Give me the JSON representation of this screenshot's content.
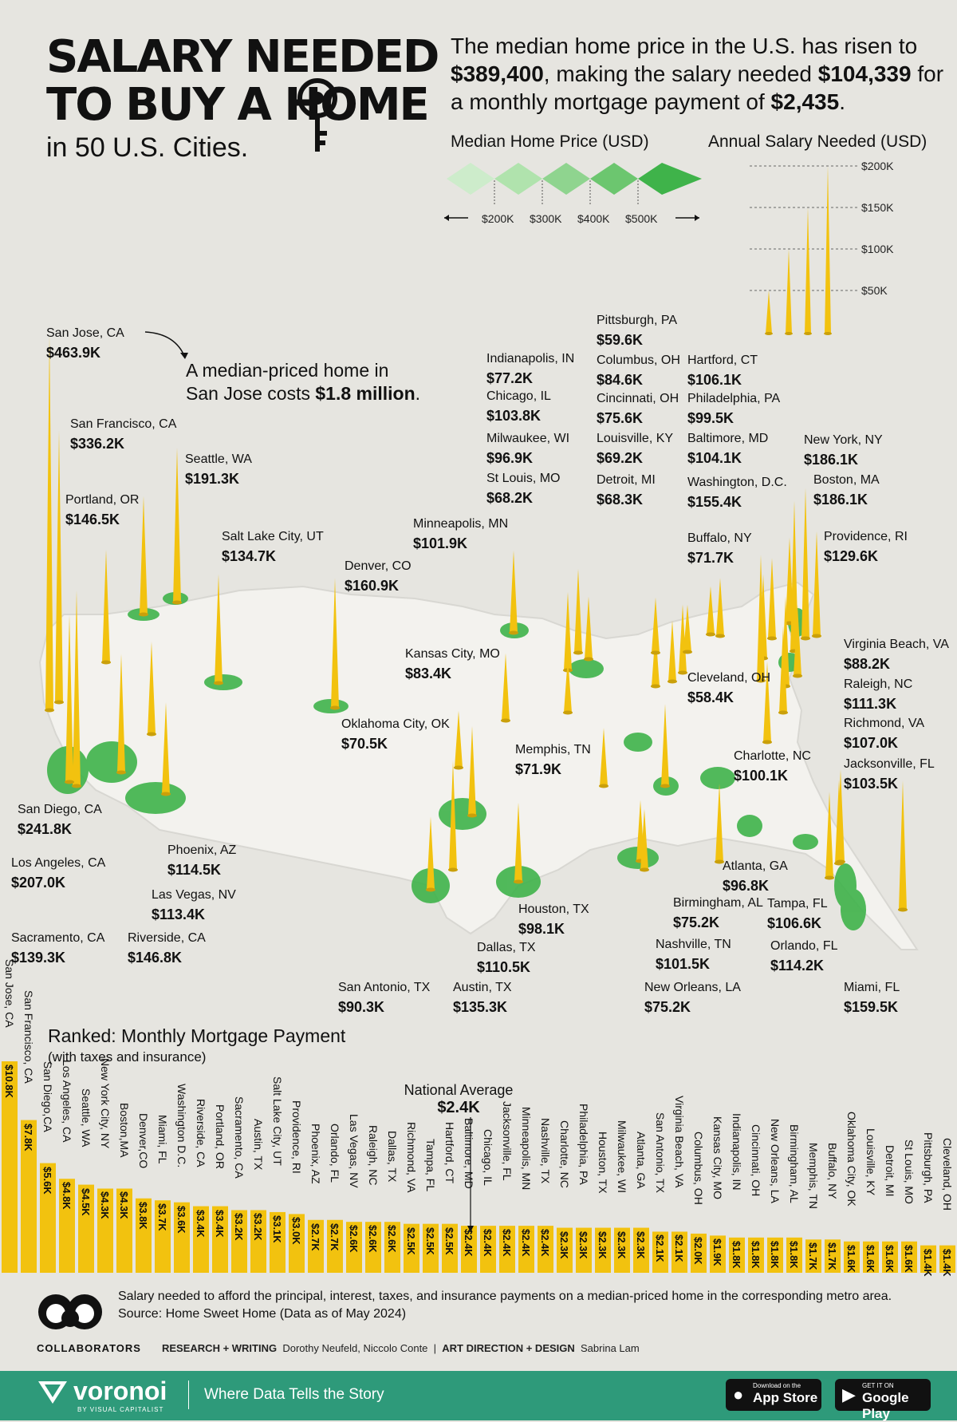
{
  "title_lines": [
    "SALARY NEEDED",
    "TO BUY A HOME"
  ],
  "subtitle": "in 50 U.S. Cities.",
  "intro": {
    "part1": "The median home price in the U.S. has risen to",
    "price": "$389,400",
    "part2": ", making the salary needed ",
    "salary": "$104,339",
    "part3": "for a monthly mortgage payment of ",
    "payment": "$2,435",
    "part4": "."
  },
  "legend": {
    "price_title": "Median Home Price (USD)",
    "price_ticks": [
      "$200K",
      "$300K",
      "$400K",
      "$500K"
    ],
    "salary_title": "Annual Salary Needed (USD)",
    "salary_ticks": [
      "$200K",
      "$150K",
      "$100K",
      "$50K"
    ]
  },
  "annotation": {
    "line1": "A median-priced home in",
    "line2a": "San Jose costs ",
    "line2b": "$1.8 million",
    "line2c": "."
  },
  "colors": {
    "spike": "#f2c20f",
    "spike_dark": "#caa00a",
    "metro": "#3fb34a",
    "metro_light": "#8fd48f",
    "map": "#f3f2ee",
    "bar": "#f2c20f",
    "background": "#e6e5e0",
    "brand": "#2e9a7a"
  },
  "chart_data": [
    {
      "type": "map-spikes",
      "title": "Annual Salary Needed (USD)",
      "series": [
        {
          "city": "San Jose, CA",
          "salary": "$463.9K",
          "value": 463.9
        },
        {
          "city": "San Francisco, CA",
          "salary": "$336.2K",
          "value": 336.2
        },
        {
          "city": "Seattle, WA",
          "salary": "$191.3K",
          "value": 191.3
        },
        {
          "city": "Portland, OR",
          "salary": "$146.5K",
          "value": 146.5
        },
        {
          "city": "Salt Lake City, UT",
          "salary": "$134.7K",
          "value": 134.7
        },
        {
          "city": "Denver, CO",
          "salary": "$160.9K",
          "value": 160.9
        },
        {
          "city": "Minneapolis, MN",
          "salary": "$101.9K",
          "value": 101.9
        },
        {
          "city": "Kansas City, MO",
          "salary": "$83.4K",
          "value": 83.4
        },
        {
          "city": "Oklahoma City, OK",
          "salary": "$70.5K",
          "value": 70.5
        },
        {
          "city": "Memphis, TN",
          "salary": "$71.9K",
          "value": 71.9
        },
        {
          "city": "Indianapolis, IN",
          "salary": "$77.2K",
          "value": 77.2
        },
        {
          "city": "Chicago, IL",
          "salary": "$103.8K",
          "value": 103.8
        },
        {
          "city": "Milwaukee, WI",
          "salary": "$96.9K",
          "value": 96.9
        },
        {
          "city": "St Louis, MO",
          "salary": "$68.2K",
          "value": 68.2
        },
        {
          "city": "Pittsburgh, PA",
          "salary": "$59.6K",
          "value": 59.6
        },
        {
          "city": "Columbus, OH",
          "salary": "$84.6K",
          "value": 84.6
        },
        {
          "city": "Cincinnati, OH",
          "salary": "$75.6K",
          "value": 75.6
        },
        {
          "city": "Louisville, KY",
          "salary": "$69.2K",
          "value": 69.2
        },
        {
          "city": "Detroit, MI",
          "salary": "$68.3K",
          "value": 68.3
        },
        {
          "city": "Hartford, CT",
          "salary": "$106.1K",
          "value": 106.1
        },
        {
          "city": "Philadelphia, PA",
          "salary": "$99.5K",
          "value": 99.5
        },
        {
          "city": "Baltimore, MD",
          "salary": "$104.1K",
          "value": 104.1
        },
        {
          "city": "Washington, D.C.",
          "salary": "$155.4K",
          "value": 155.4
        },
        {
          "city": "Buffalo, NY",
          "salary": "$71.7K",
          "value": 71.7
        },
        {
          "city": "New York, NY",
          "salary": "$186.1K",
          "value": 186.1
        },
        {
          "city": "Boston, MA",
          "salary": "$186.1K",
          "value": 186.1
        },
        {
          "city": "Providence, RI",
          "salary": "$129.6K",
          "value": 129.6
        },
        {
          "city": "Virginia Beach, VA",
          "salary": "$88.2K",
          "value": 88.2
        },
        {
          "city": "Raleigh, NC",
          "salary": "$111.3K",
          "value": 111.3
        },
        {
          "city": "Richmond, VA",
          "salary": "$107.0K",
          "value": 107.0
        },
        {
          "city": "Cleveland, OH",
          "salary": "$58.4K",
          "value": 58.4
        },
        {
          "city": "Charlotte, NC",
          "salary": "$100.1K",
          "value": 100.1
        },
        {
          "city": "Jacksonville, FL",
          "salary": "$103.5K",
          "value": 103.5
        },
        {
          "city": "Atlanta, GA",
          "salary": "$96.8K",
          "value": 96.8
        },
        {
          "city": "Birmingham, AL",
          "salary": "$75.2K",
          "value": 75.2
        },
        {
          "city": "Nashville, TN",
          "salary": "$101.5K",
          "value": 101.5
        },
        {
          "city": "New Orleans, LA",
          "salary": "$75.2K",
          "value": 75.2
        },
        {
          "city": "Tampa, FL",
          "salary": "$106.6K",
          "value": 106.6
        },
        {
          "city": "Orlando, FL",
          "salary": "$114.2K",
          "value": 114.2
        },
        {
          "city": "Miami, FL",
          "salary": "$159.5K",
          "value": 159.5
        },
        {
          "city": "Houston, TX",
          "salary": "$98.1K",
          "value": 98.1
        },
        {
          "city": "Dallas, TX",
          "salary": "$110.5K",
          "value": 110.5
        },
        {
          "city": "Austin, TX",
          "salary": "$135.3K",
          "value": 135.3
        },
        {
          "city": "San Antonio, TX",
          "salary": "$90.3K",
          "value": 90.3
        },
        {
          "city": "San Diego, CA",
          "salary": "$241.8K",
          "value": 241.8
        },
        {
          "city": "Los Angeles, CA",
          "salary": "$207.0K",
          "value": 207.0
        },
        {
          "city": "Sacramento, CA",
          "salary": "$139.3K",
          "value": 139.3
        },
        {
          "city": "Riverside, CA",
          "salary": "$146.8K",
          "value": 146.8
        },
        {
          "city": "Phoenix, AZ",
          "salary": "$114.5K",
          "value": 114.5
        },
        {
          "city": "Las Vegas, NV",
          "salary": "$113.4K",
          "value": 113.4
        }
      ]
    },
    {
      "type": "bar",
      "title": "Ranked: Monthly Mortgage Payment",
      "subtitle": "(with taxes and insurance)",
      "reference_label": "National Average",
      "reference_value_label": "$2.4K",
      "reference_value": 2.4,
      "categories": [
        "San Jose, CA",
        "San Francisco, CA",
        "San Diego,CA",
        "Los Angeles, CA",
        "Seattle, WA",
        "New York City, NY",
        "Boston,MA",
        "Denver,CO",
        "Miami, FL",
        "Washington D.C.",
        "Riverside, CA",
        "Portland, OR",
        "Sacramento, CA",
        "Austin, TX",
        "Salt Lake City, UT",
        "Providence, RI",
        "Phoenix, AZ",
        "Orlando, FL",
        "Las Vegas, NV",
        "Raleigh, NC",
        "Dallas, TX",
        "Richmond, VA",
        "Tampa, FL",
        "Hartford, CT",
        "Baltimore, MD",
        "Chicago, IL",
        "Jacksonville, FL",
        "Minneapolis, MN",
        "Nashville, TX",
        "Charlotte, NC",
        "Philadelphia, PA",
        "Houston, TX",
        "Milwaukee, WI",
        "Atlanta, GA",
        "San Antonio, TX",
        "Virginia Beach, VA",
        "Columbus, OH",
        "Kansas City, MO",
        "Indianapolis, IN",
        "Cincinnati, OH",
        "New Orleans, LA",
        "Birmingham, AL",
        "Memphis, TN",
        "Buffalo, NY",
        "Oklahoma City, OK",
        "Louisville, KY",
        "Detroit, MI",
        "St Louis, MO",
        "Pittsburgh, PA",
        "Cleveland, OH"
      ],
      "value_labels": [
        "$10.8K",
        "$7.8K",
        "$5.6K",
        "$4.8K",
        "$4.5K",
        "$4.3K",
        "$4.3K",
        "$3.8K",
        "$3.7K",
        "$3.6K",
        "$3.4K",
        "$3.4K",
        "$3.2K",
        "$3.2K",
        "$3.1K",
        "$3.0K",
        "$2.7K",
        "$2.7K",
        "$2.6K",
        "$2.6K",
        "$2.6K",
        "$2.5K",
        "$2.5K",
        "$2.5K",
        "$2.4K",
        "$2.4K",
        "$2.4K",
        "$2.4K",
        "$2.4K",
        "$2.3K",
        "$2.3K",
        "$2.3K",
        "$2.3K",
        "$2.3K",
        "$2.1K",
        "$2.1K",
        "$2.0K",
        "$1.9K",
        "$1.8K",
        "$1.8K",
        "$1.8K",
        "$1.8K",
        "$1.7K",
        "$1.7K",
        "$1.6K",
        "$1.6K",
        "$1.6K",
        "$1.6K",
        "$1.4K",
        "$1.4K"
      ],
      "values": [
        10.8,
        7.8,
        5.6,
        4.8,
        4.5,
        4.3,
        4.3,
        3.8,
        3.7,
        3.6,
        3.4,
        3.4,
        3.2,
        3.2,
        3.1,
        3.0,
        2.7,
        2.7,
        2.6,
        2.6,
        2.6,
        2.5,
        2.5,
        2.5,
        2.4,
        2.4,
        2.4,
        2.4,
        2.4,
        2.3,
        2.3,
        2.3,
        2.3,
        2.3,
        2.1,
        2.1,
        2.0,
        1.9,
        1.8,
        1.8,
        1.8,
        1.8,
        1.7,
        1.7,
        1.6,
        1.6,
        1.6,
        1.6,
        1.4,
        1.4
      ]
    }
  ],
  "footer": {
    "note": "Salary needed to afford the principal, interest, taxes, and insurance payments on a median-priced home in the corresponding metro area.",
    "source": "Source: Home Sweet Home (Data as of May 2024)",
    "collaborators": "COLLABORATORS",
    "research_label": "RESEARCH + WRITING",
    "research_names": "Dorothy Neufeld, Niccolo Conte",
    "sep": "|",
    "design_label": "ART DIRECTION + DESIGN",
    "design_names": "Sabrina Lam"
  },
  "brand": {
    "name": "voronoi",
    "sub": "BY VISUAL CAPITALIST",
    "tagline": "Where Data Tells the Story"
  },
  "stores": [
    {
      "small": "Download on the",
      "big": "App Store"
    },
    {
      "small": "GET IT ON",
      "big": "Google Play"
    }
  ]
}
